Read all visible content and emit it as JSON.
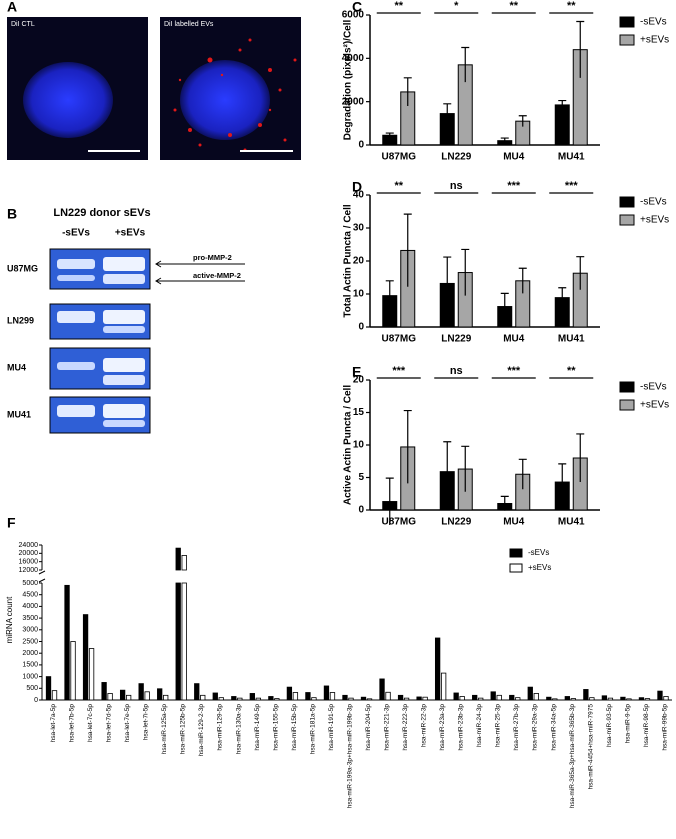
{
  "figure": {
    "panel_a": {
      "label": "A",
      "left_caption": "DiI CTL",
      "right_caption": "DiI labelled EVs"
    },
    "panel_b": {
      "label": "B",
      "title": "LN229 donor sEVs",
      "columns": [
        "-sEVs",
        "+sEVs"
      ],
      "rows": [
        "U87MG",
        "LN299",
        "MU4",
        "MU41"
      ],
      "arrows": [
        "pro-MMP-2",
        "active-MMP-2"
      ]
    }
  },
  "chart_data": [
    {
      "type": "bar",
      "label": "C",
      "y_label": "Degradation (pixels²)/Cell",
      "categories": [
        "U87MG",
        "LN229",
        "MU4",
        "MU41"
      ],
      "series": [
        {
          "name": "-sEVs",
          "color": "#000000",
          "values": [
            450,
            1450,
            200,
            1850
          ],
          "errors": [
            100,
            450,
            120,
            200
          ]
        },
        {
          "name": "+sEVs",
          "color": "#a6a6a6",
          "values": [
            2450,
            3700,
            1100,
            4400
          ],
          "errors": [
            650,
            800,
            250,
            1300
          ]
        }
      ],
      "significance": [
        "**",
        "*",
        "**",
        "**"
      ],
      "ylim": [
        0,
        6000
      ],
      "yticks": [
        0,
        2000,
        4000,
        6000
      ]
    },
    {
      "type": "bar",
      "label": "D",
      "y_label": "Total Actin Puncta / Cell",
      "categories": [
        "U87MG",
        "LN229",
        "MU4",
        "MU41"
      ],
      "series": [
        {
          "name": "-sEVs",
          "color": "#000000",
          "values": [
            9.5,
            13.2,
            6.2,
            8.9
          ],
          "errors": [
            4.5,
            8,
            4,
            3
          ]
        },
        {
          "name": "+sEVs",
          "color": "#a6a6a6",
          "values": [
            23.2,
            16.5,
            14,
            16.3
          ],
          "errors": [
            11,
            7,
            3.8,
            5
          ]
        }
      ],
      "significance": [
        "**",
        "ns",
        "***",
        "***"
      ],
      "ylim": [
        0,
        40
      ],
      "yticks": [
        0,
        10,
        20,
        30,
        40
      ]
    },
    {
      "type": "bar",
      "label": "E",
      "y_label": "Active Actin Puncta / Cell",
      "categories": [
        "U87MG",
        "LN229",
        "MU4",
        "MU41"
      ],
      "series": [
        {
          "name": "-sEVs",
          "color": "#000000",
          "values": [
            1.3,
            5.9,
            1,
            4.3
          ],
          "errors": [
            3.6,
            4.6,
            1.1,
            2.8
          ]
        },
        {
          "name": "+sEVs",
          "color": "#a6a6a6",
          "values": [
            9.7,
            6.3,
            5.5,
            8
          ],
          "errors": [
            5.6,
            3.5,
            2.3,
            3.7
          ]
        }
      ],
      "significance": [
        "***",
        "ns",
        "***",
        "**"
      ],
      "ylim": [
        0,
        20
      ],
      "yticks": [
        0,
        5,
        10,
        15,
        20
      ]
    },
    {
      "type": "broken-bar",
      "label": "F",
      "y_label": "miRNA count",
      "categories": [
        "hsa-let-7a-5p",
        "hsa-let-7b-5p",
        "hsa-let-7c-5p",
        "hsa-let-7d-5p",
        "hsa-let-7e-5p",
        "hsa-let-7i-5p",
        "hsa-miR-125a-5p",
        "hsa-miR-125b-5p",
        "hsa-miR-129-2-3p",
        "hsa-miR-129-5p",
        "hsa-miR-130a-3p",
        "hsa-miR-149-5p",
        "hsa-miR-155-5p",
        "hsa-miR-15b-5p",
        "hsa-miR-181a-5p",
        "hsa-miR-191-5p",
        "hsa-miR-199a-3p+hsa-miR-199b-3p",
        "hsa-miR-204-5p",
        "hsa-miR-221-3p",
        "hsa-miR-222-3p",
        "hsa-miR-22-3p",
        "hsa-miR-23a-3p",
        "hsa-miR-23b-3p",
        "hsa-miR-24-3p",
        "hsa-miR-25-3p",
        "hsa-miR-27b-3p",
        "hsa-miR-29a-3p",
        "hsa-miR-34a-5p",
        "hsa-miR-365a-3p+hsa-miR-365b-3p",
        "hsa-miR-4454+hsa-miR-7975",
        "hsa-miR-93-5p",
        "hsa-miR-9-5p",
        "hsa-miR-98-5p",
        "hsa-miR-99b-5p"
      ],
      "series": [
        {
          "name": "-sEVs",
          "color": "#000000",
          "values": [
            1000,
            4900,
            3650,
            750,
            420,
            700,
            480,
            22500,
            700,
            300,
            150,
            280,
            150,
            550,
            320,
            600,
            200,
            120,
            900,
            200,
            130,
            2650,
            300,
            200,
            350,
            200,
            550,
            120,
            150,
            450,
            180,
            120,
            100,
            380
          ]
        },
        {
          "name": "+sEVs",
          "color": "#ffffff",
          "values": [
            400,
            2500,
            2200,
            280,
            200,
            350,
            200,
            19000,
            200,
            100,
            80,
            80,
            60,
            320,
            100,
            320,
            80,
            50,
            330,
            80,
            120,
            1150,
            150,
            80,
            200,
            100,
            280,
            50,
            60,
            100,
            80,
            50,
            60,
            150
          ]
        }
      ],
      "ylim": [
        0,
        24000
      ],
      "y_break": [
        5000,
        12000
      ],
      "yticks": [
        0,
        500,
        1000,
        1500,
        2000,
        2500,
        3000,
        3500,
        4000,
        4500,
        5000,
        12000,
        16000,
        20000,
        24000
      ]
    }
  ]
}
